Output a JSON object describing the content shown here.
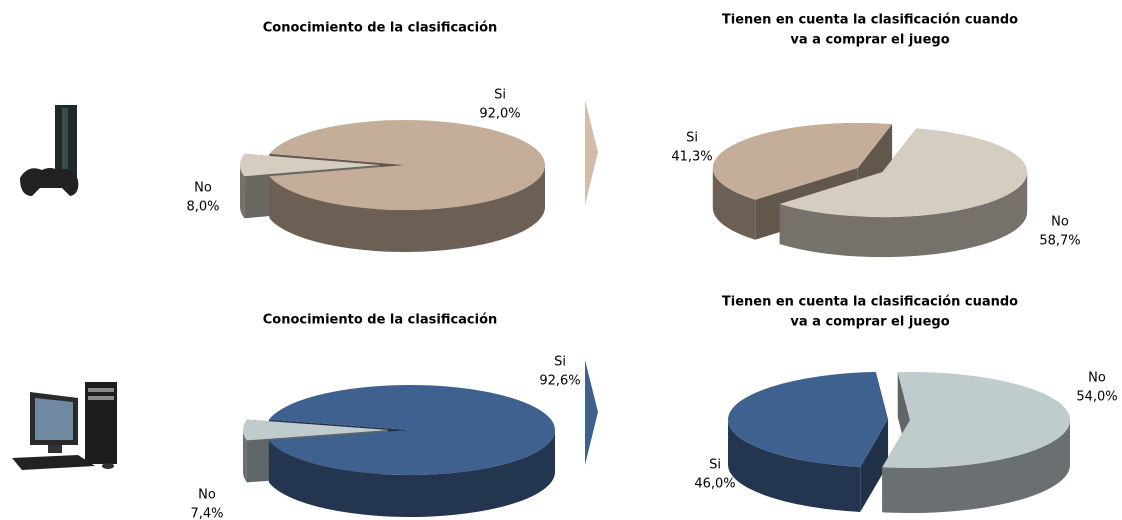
{
  "chart_data": [
    {
      "type": "pie3d",
      "title": "Conocimiento de la clasificación",
      "categories": [
        "Si",
        "No"
      ],
      "values": [
        92.0,
        8.0
      ],
      "value_labels": [
        "92,0%",
        "8,0%"
      ],
      "colors": [
        "#c4ae9a",
        "#d6cdc1"
      ]
    },
    {
      "type": "pie3d",
      "title": [
        "Tienen en cuenta la clasificación cuando",
        "va a comprar el juego"
      ],
      "categories": [
        "Si",
        "No"
      ],
      "values": [
        41.3,
        58.7
      ],
      "value_labels": [
        "41,3%",
        "58,7%"
      ],
      "colors": [
        "#c4ae9a",
        "#d6cdc1"
      ]
    },
    {
      "type": "pie3d",
      "title": "Conocimiento de la clasificación",
      "categories": [
        "Si",
        "No"
      ],
      "values": [
        92.6,
        7.4
      ],
      "value_labels": [
        "92,6%",
        "7,4%"
      ],
      "colors": [
        "#3f6190",
        "#c0cbcd"
      ]
    },
    {
      "type": "pie3d",
      "title": [
        "Tienen en cuenta la clasificación cuando",
        "va a comprar el juego"
      ],
      "categories": [
        "Si",
        "No"
      ],
      "values": [
        46.0,
        54.0
      ],
      "value_labels": [
        "46,0%",
        "54,0%"
      ],
      "colors": [
        "#3f6190",
        "#c0cbcd"
      ]
    }
  ]
}
